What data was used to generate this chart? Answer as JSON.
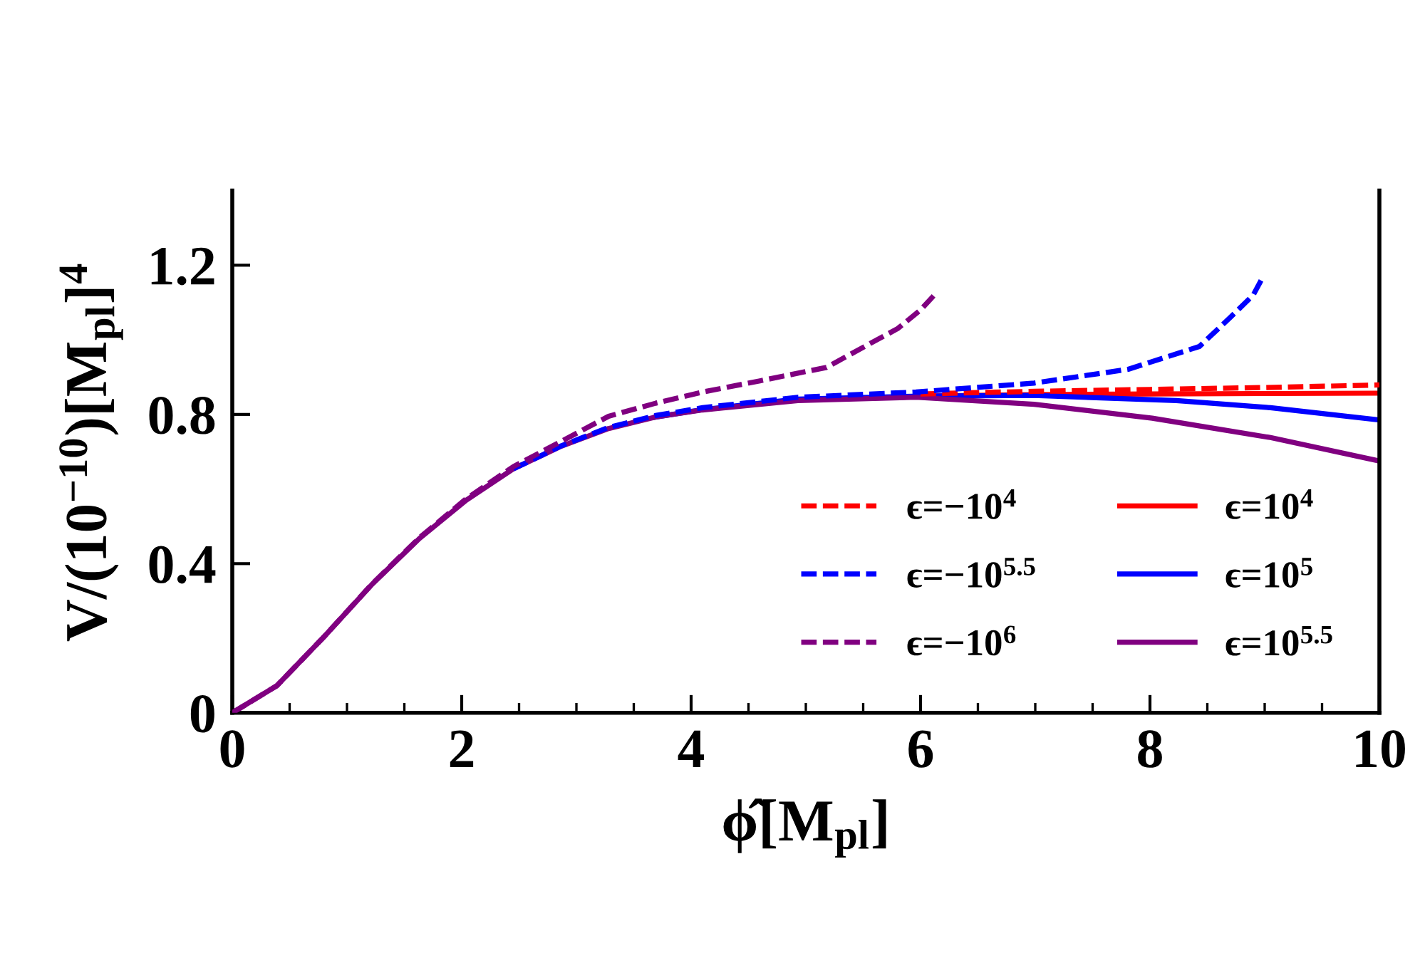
{
  "chart_data": {
    "type": "line",
    "xlabel": "ϕ̂[M$_{pl}$]",
    "ylabel": "V/(10$^{−10}$)[M$_{pl}$]$^{4}$",
    "xlim": [
      0,
      10
    ],
    "ylim": [
      0,
      1.4
    ],
    "xticks": [
      0,
      2,
      4,
      6,
      8,
      10
    ],
    "yticks": [
      0,
      0.4,
      0.8,
      1.2
    ],
    "grid": false,
    "legend": "bottom right",
    "marker": "none",
    "series": [
      {
        "name": "ϵ=−10$^{4}$",
        "color": "#ff0000",
        "line_style": "dashed",
        "x": [
          6,
          7,
          8,
          9,
          10
        ],
        "values": [
          0.855,
          0.862,
          0.867,
          0.872,
          0.879
        ]
      },
      {
        "name": "ϵ=−10$^{5.5}$",
        "color": "#0000ff",
        "line_style": "dashed",
        "x": [
          2.45,
          2.87,
          3.28,
          3.69,
          4.1,
          4.93,
          5.96,
          6.99,
          7.81,
          8.43,
          8.7,
          8.9,
          8.97
        ],
        "values": [
          0.654,
          0.716,
          0.765,
          0.797,
          0.818,
          0.846,
          0.86,
          0.884,
          0.921,
          0.982,
          1.06,
          1.12,
          1.16
        ]
      },
      {
        "name": "ϵ=−10$^{6}$",
        "color": "#800080",
        "line_style": "dashed",
        "x": [
          0,
          0.39,
          0.8,
          1.22,
          1.63,
          2.04,
          2.45,
          2.87,
          3.28,
          3.69,
          4.1,
          4.6,
          5.18,
          5.5,
          5.8,
          6.0,
          6.15
        ],
        "values": [
          0,
          0.073,
          0.204,
          0.346,
          0.469,
          0.574,
          0.66,
          0.728,
          0.795,
          0.83,
          0.86,
          0.89,
          0.926,
          0.98,
          1.03,
          1.08,
          1.13
        ]
      },
      {
        "name": "ϵ=10$^{4}$",
        "color": "#ff0000",
        "line_style": "solid",
        "x": [
          6,
          7,
          8,
          9,
          10
        ],
        "values": [
          0.849,
          0.853,
          0.855,
          0.856,
          0.857
        ]
      },
      {
        "name": "ϵ=10$^{5}$",
        "color": "#0000ff",
        "line_style": "solid",
        "x": [
          3.69,
          4.1,
          4.93,
          6.0,
          6.99,
          8.23,
          9.05,
          10
        ],
        "values": [
          0.793,
          0.813,
          0.841,
          0.849,
          0.851,
          0.837,
          0.818,
          0.785
        ]
      },
      {
        "name": "ϵ=10$^{5.5}$",
        "color": "#800080",
        "line_style": "solid",
        "x": [
          0,
          0.39,
          0.8,
          1.22,
          1.63,
          2.04,
          2.45,
          2.87,
          3.28,
          3.69,
          4.1,
          4.93,
          5.96,
          6.99,
          8.02,
          9.05,
          10
        ],
        "values": [
          0,
          0.073,
          0.204,
          0.345,
          0.467,
          0.57,
          0.654,
          0.715,
          0.762,
          0.793,
          0.812,
          0.837,
          0.846,
          0.827,
          0.79,
          0.738,
          0.675
        ]
      }
    ]
  }
}
